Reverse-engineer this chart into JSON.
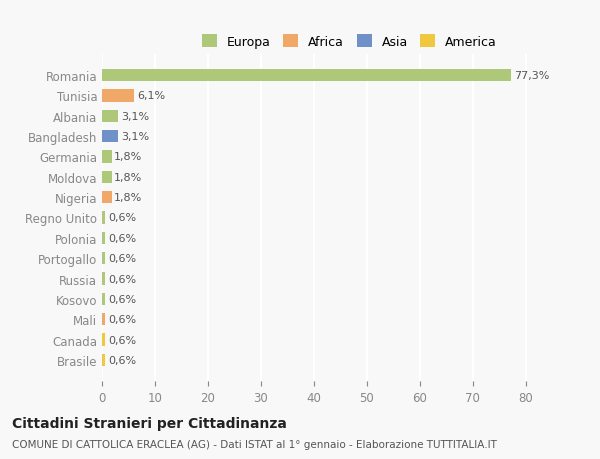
{
  "countries": [
    "Romania",
    "Tunisia",
    "Albania",
    "Bangladesh",
    "Germania",
    "Moldova",
    "Nigeria",
    "Regno Unito",
    "Polonia",
    "Portogallo",
    "Russia",
    "Kosovo",
    "Mali",
    "Canada",
    "Brasile"
  ],
  "values": [
    77.3,
    6.1,
    3.1,
    3.1,
    1.8,
    1.8,
    1.8,
    0.6,
    0.6,
    0.6,
    0.6,
    0.6,
    0.6,
    0.6,
    0.6
  ],
  "labels": [
    "77,3%",
    "6,1%",
    "3,1%",
    "3,1%",
    "1,8%",
    "1,8%",
    "1,8%",
    "0,6%",
    "0,6%",
    "0,6%",
    "0,6%",
    "0,6%",
    "0,6%",
    "0,6%",
    "0,6%"
  ],
  "colors": [
    "#adc878",
    "#f0a868",
    "#adc878",
    "#7090c8",
    "#adc878",
    "#adc878",
    "#f0a868",
    "#adc878",
    "#adc878",
    "#adc878",
    "#adc878",
    "#adc878",
    "#f0a868",
    "#f0c840",
    "#f0c840"
  ],
  "legend_labels": [
    "Europa",
    "Africa",
    "Asia",
    "America"
  ],
  "legend_colors": [
    "#adc878",
    "#f0a868",
    "#7090c8",
    "#f0c840"
  ],
  "title": "Cittadini Stranieri per Cittadinanza",
  "subtitle": "COMUNE DI CATTOLICA ERACLEA (AG) - Dati ISTAT al 1° gennaio - Elaborazione TUTTITALIA.IT",
  "xlim": [
    0,
    85
  ],
  "xticks": [
    0,
    10,
    20,
    30,
    40,
    50,
    60,
    70,
    80
  ],
  "bg_color": "#f8f8f8",
  "grid_color": "#ffffff",
  "bar_height": 0.6
}
